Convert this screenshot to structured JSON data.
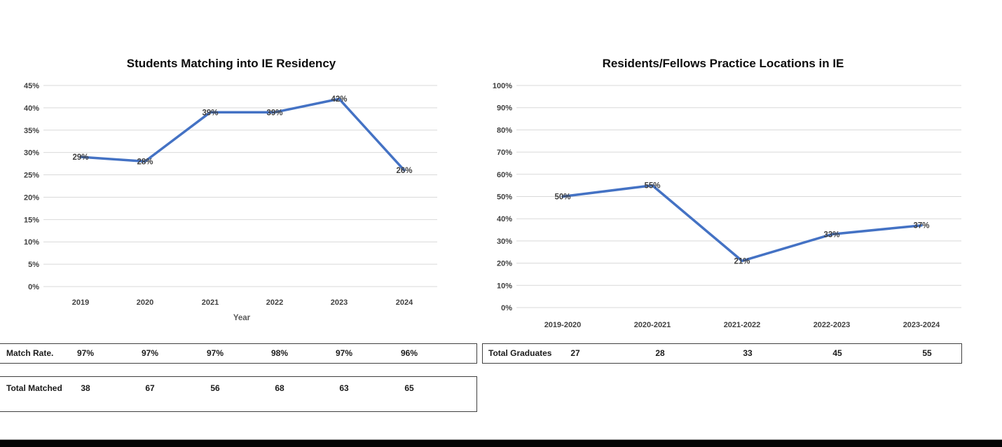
{
  "chart_data": [
    {
      "type": "line",
      "title": "Students Matching into IE Residency",
      "xlabel": "Year",
      "ylabel": "",
      "categories": [
        "2019",
        "2020",
        "2021",
        "2022",
        "2023",
        "2024"
      ],
      "values": [
        29,
        28,
        39,
        39,
        42,
        26
      ],
      "data_labels": [
        "29%",
        "28%",
        "39%",
        "39%",
        "42%",
        "26%"
      ],
      "ylim": [
        0,
        45
      ],
      "ytick_step": 5,
      "ytick_suffix": "%",
      "grid": true,
      "legend": "none",
      "line_color": "#4472C4",
      "grid_color": "#D9D9D9",
      "tick_color": "#404040",
      "data_label_color": "#404040",
      "title_color": "#0d0d0d"
    },
    {
      "type": "line",
      "title": "Residents/Fellows Practice Locations in IE",
      "xlabel": "",
      "ylabel": "",
      "categories": [
        "2019-2020",
        "2020-2021",
        "2021-2022",
        "2022-2023",
        "2023-2024"
      ],
      "values": [
        50,
        55,
        21,
        33,
        37
      ],
      "data_labels": [
        "50%",
        "55%",
        "21%",
        "33%",
        "37%"
      ],
      "ylim": [
        0,
        100
      ],
      "ytick_step": 10,
      "ytick_suffix": "%",
      "grid": true,
      "legend": "none",
      "line_color": "#4472C4",
      "grid_color": "#D9D9D9",
      "tick_color": "#404040",
      "data_label_color": "#404040",
      "title_color": "#0d0d0d"
    }
  ],
  "tables": [
    {
      "label": "Match Rate.",
      "values": [
        "97%",
        "97%",
        "97%",
        "98%",
        "97%",
        "96%"
      ]
    },
    {
      "label": "Total Matched",
      "values": [
        "38",
        "67",
        "56",
        "68",
        "63",
        "65"
      ]
    },
    {
      "label": "Total Graduates",
      "values": [
        "27",
        "28",
        "33",
        "45",
        "55"
      ]
    }
  ]
}
